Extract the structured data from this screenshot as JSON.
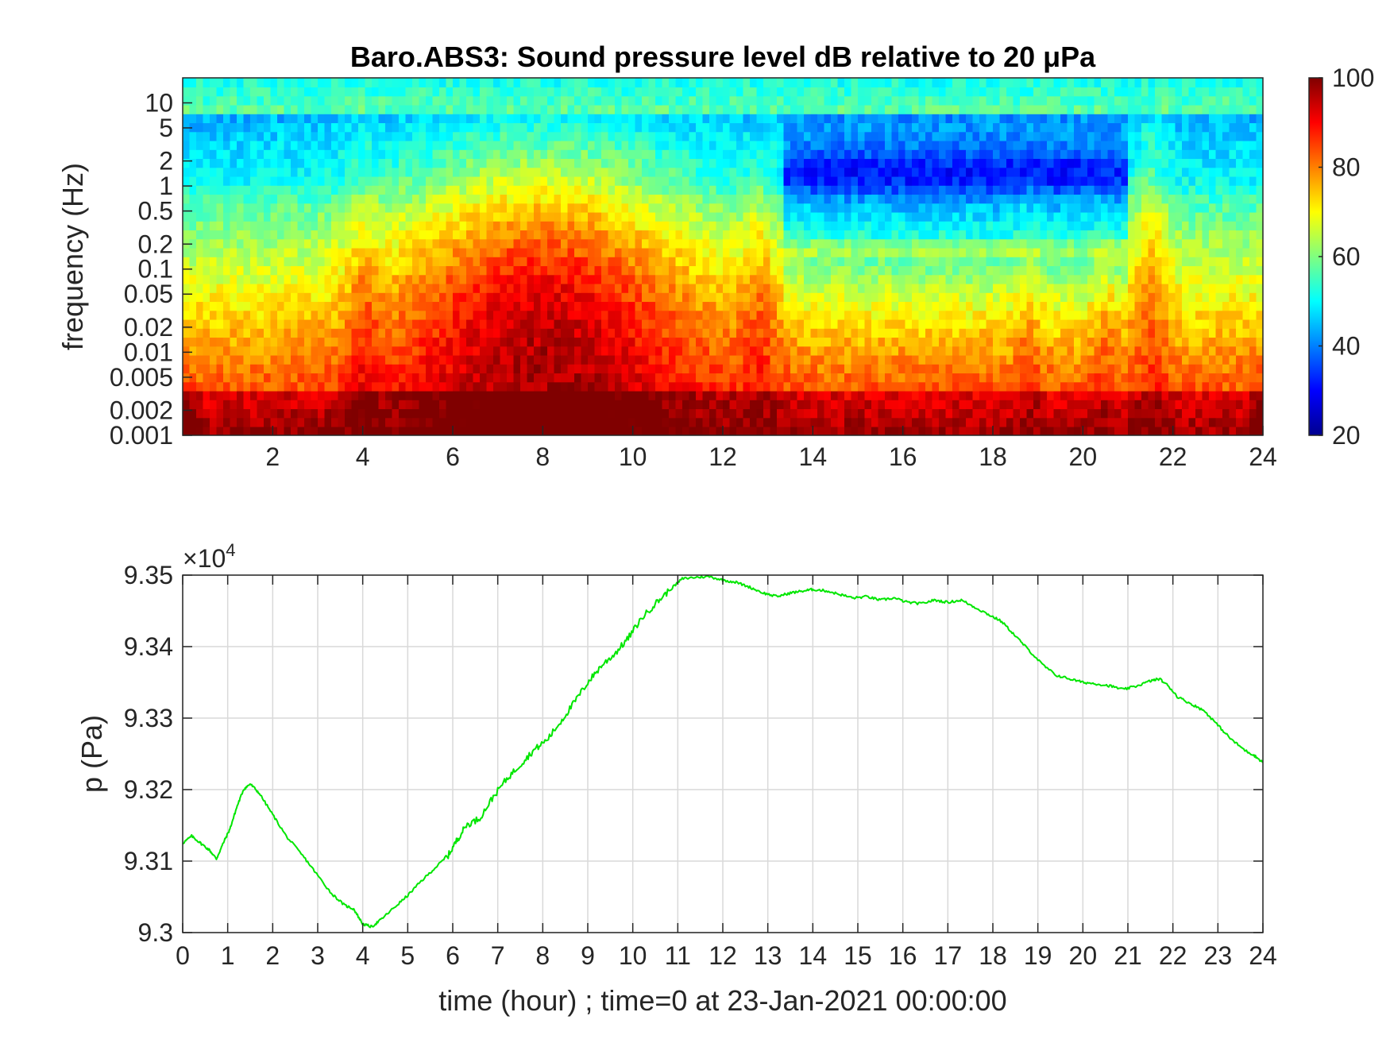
{
  "chart_data": [
    {
      "type": "heatmap",
      "title": "Baro.ABS3: Sound pressure level dB relative to 20 μPa",
      "ylabel": "frequency (Hz)",
      "xlim": [
        0,
        24
      ],
      "x_ticks": [
        "2",
        "4",
        "6",
        "8",
        "10",
        "12",
        "14",
        "16",
        "18",
        "20",
        "22",
        "24"
      ],
      "x_tick_values": [
        2,
        4,
        6,
        8,
        10,
        12,
        14,
        16,
        18,
        20,
        22,
        24
      ],
      "y_scale": "log",
      "ylim": [
        0.001,
        20
      ],
      "y_ticks": [
        "0.001",
        "0.002",
        "0.005",
        "0.01",
        "0.02",
        "0.05",
        "0.1",
        "0.2",
        "0.5",
        "1",
        "2",
        "5",
        "10"
      ],
      "y_tick_values": [
        0.001,
        0.002,
        0.005,
        0.01,
        0.02,
        0.05,
        0.1,
        0.2,
        0.5,
        1,
        2,
        5,
        10
      ],
      "colorbar": {
        "colormap": "jet",
        "range": [
          20,
          100
        ],
        "ticks": [
          "20",
          "40",
          "60",
          "80",
          "100"
        ],
        "tick_values": [
          20,
          40,
          60,
          80,
          100
        ]
      },
      "grid": false
    },
    {
      "type": "line",
      "xlabel": "time (hour) ; time=0 at 23-Jan-2021 00:00:00",
      "ylabel": "p (Pa)",
      "exponent_label": "×10",
      "exponent_power": "4",
      "xlim": [
        0,
        24
      ],
      "ylim": [
        9.3,
        9.35
      ],
      "x_ticks": [
        "0",
        "1",
        "2",
        "3",
        "4",
        "5",
        "6",
        "7",
        "8",
        "9",
        "10",
        "11",
        "12",
        "13",
        "14",
        "15",
        "16",
        "17",
        "18",
        "19",
        "20",
        "21",
        "22",
        "23",
        "24"
      ],
      "y_ticks": [
        "9.3",
        "9.31",
        "9.32",
        "9.33",
        "9.34",
        "9.35"
      ],
      "y_tick_values": [
        9.3,
        9.31,
        9.32,
        9.33,
        9.34,
        9.35
      ],
      "grid": true,
      "series": [
        {
          "color": "#00e600",
          "x": [
            0,
            0.2,
            0.4,
            0.6,
            0.75,
            0.9,
            1.05,
            1.2,
            1.35,
            1.5,
            1.7,
            2.0,
            2.3,
            2.7,
            3.0,
            3.3,
            3.6,
            3.8,
            4.0,
            4.2,
            4.4,
            4.7,
            5.0,
            5.3,
            5.6,
            5.9,
            6.1,
            6.3,
            6.6,
            6.9,
            7.2,
            7.5,
            7.8,
            8.1,
            8.4,
            8.7,
            9.0,
            9.3,
            9.6,
            9.9,
            10.2,
            10.5,
            10.8,
            11.1,
            11.4,
            11.7,
            12.0,
            12.3,
            12.6,
            12.9,
            13.2,
            13.5,
            13.8,
            14.0,
            14.3,
            14.6,
            14.9,
            15.2,
            15.5,
            15.8,
            16.1,
            16.4,
            16.7,
            17.0,
            17.3,
            17.6,
            17.9,
            18.2,
            18.5,
            18.8,
            19.1,
            19.4,
            19.7,
            20.0,
            20.3,
            20.6,
            20.9,
            21.2,
            21.5,
            21.7,
            21.9,
            22.1,
            22.4,
            22.7,
            23.0,
            23.3,
            23.6,
            23.8,
            24.0
          ],
          "values": [
            9.3125,
            9.3135,
            9.3125,
            9.3115,
            9.3103,
            9.3125,
            9.3145,
            9.3175,
            9.32,
            9.3208,
            9.3195,
            9.3165,
            9.3135,
            9.3105,
            9.308,
            9.3055,
            9.3038,
            9.3033,
            9.3012,
            9.3008,
            9.3018,
            9.3035,
            9.3052,
            9.3072,
            9.309,
            9.3108,
            9.313,
            9.315,
            9.316,
            9.319,
            9.3215,
            9.3235,
            9.3255,
            9.327,
            9.3295,
            9.3322,
            9.335,
            9.3373,
            9.339,
            9.3412,
            9.344,
            9.346,
            9.3478,
            9.3495,
            9.3497,
            9.3498,
            9.3493,
            9.349,
            9.3483,
            9.3475,
            9.347,
            9.3475,
            9.3478,
            9.348,
            9.3478,
            9.3473,
            9.3468,
            9.347,
            9.3465,
            9.3468,
            9.3462,
            9.346,
            9.3465,
            9.3462,
            9.3465,
            9.3455,
            9.3445,
            9.3435,
            9.3415,
            9.3395,
            9.3375,
            9.336,
            9.3355,
            9.335,
            9.3348,
            9.3345,
            9.334,
            9.3345,
            9.3352,
            9.3355,
            9.3345,
            9.333,
            9.332,
            9.331,
            9.329,
            9.327,
            9.3255,
            9.3248,
            9.3238
          ]
        }
      ]
    }
  ]
}
